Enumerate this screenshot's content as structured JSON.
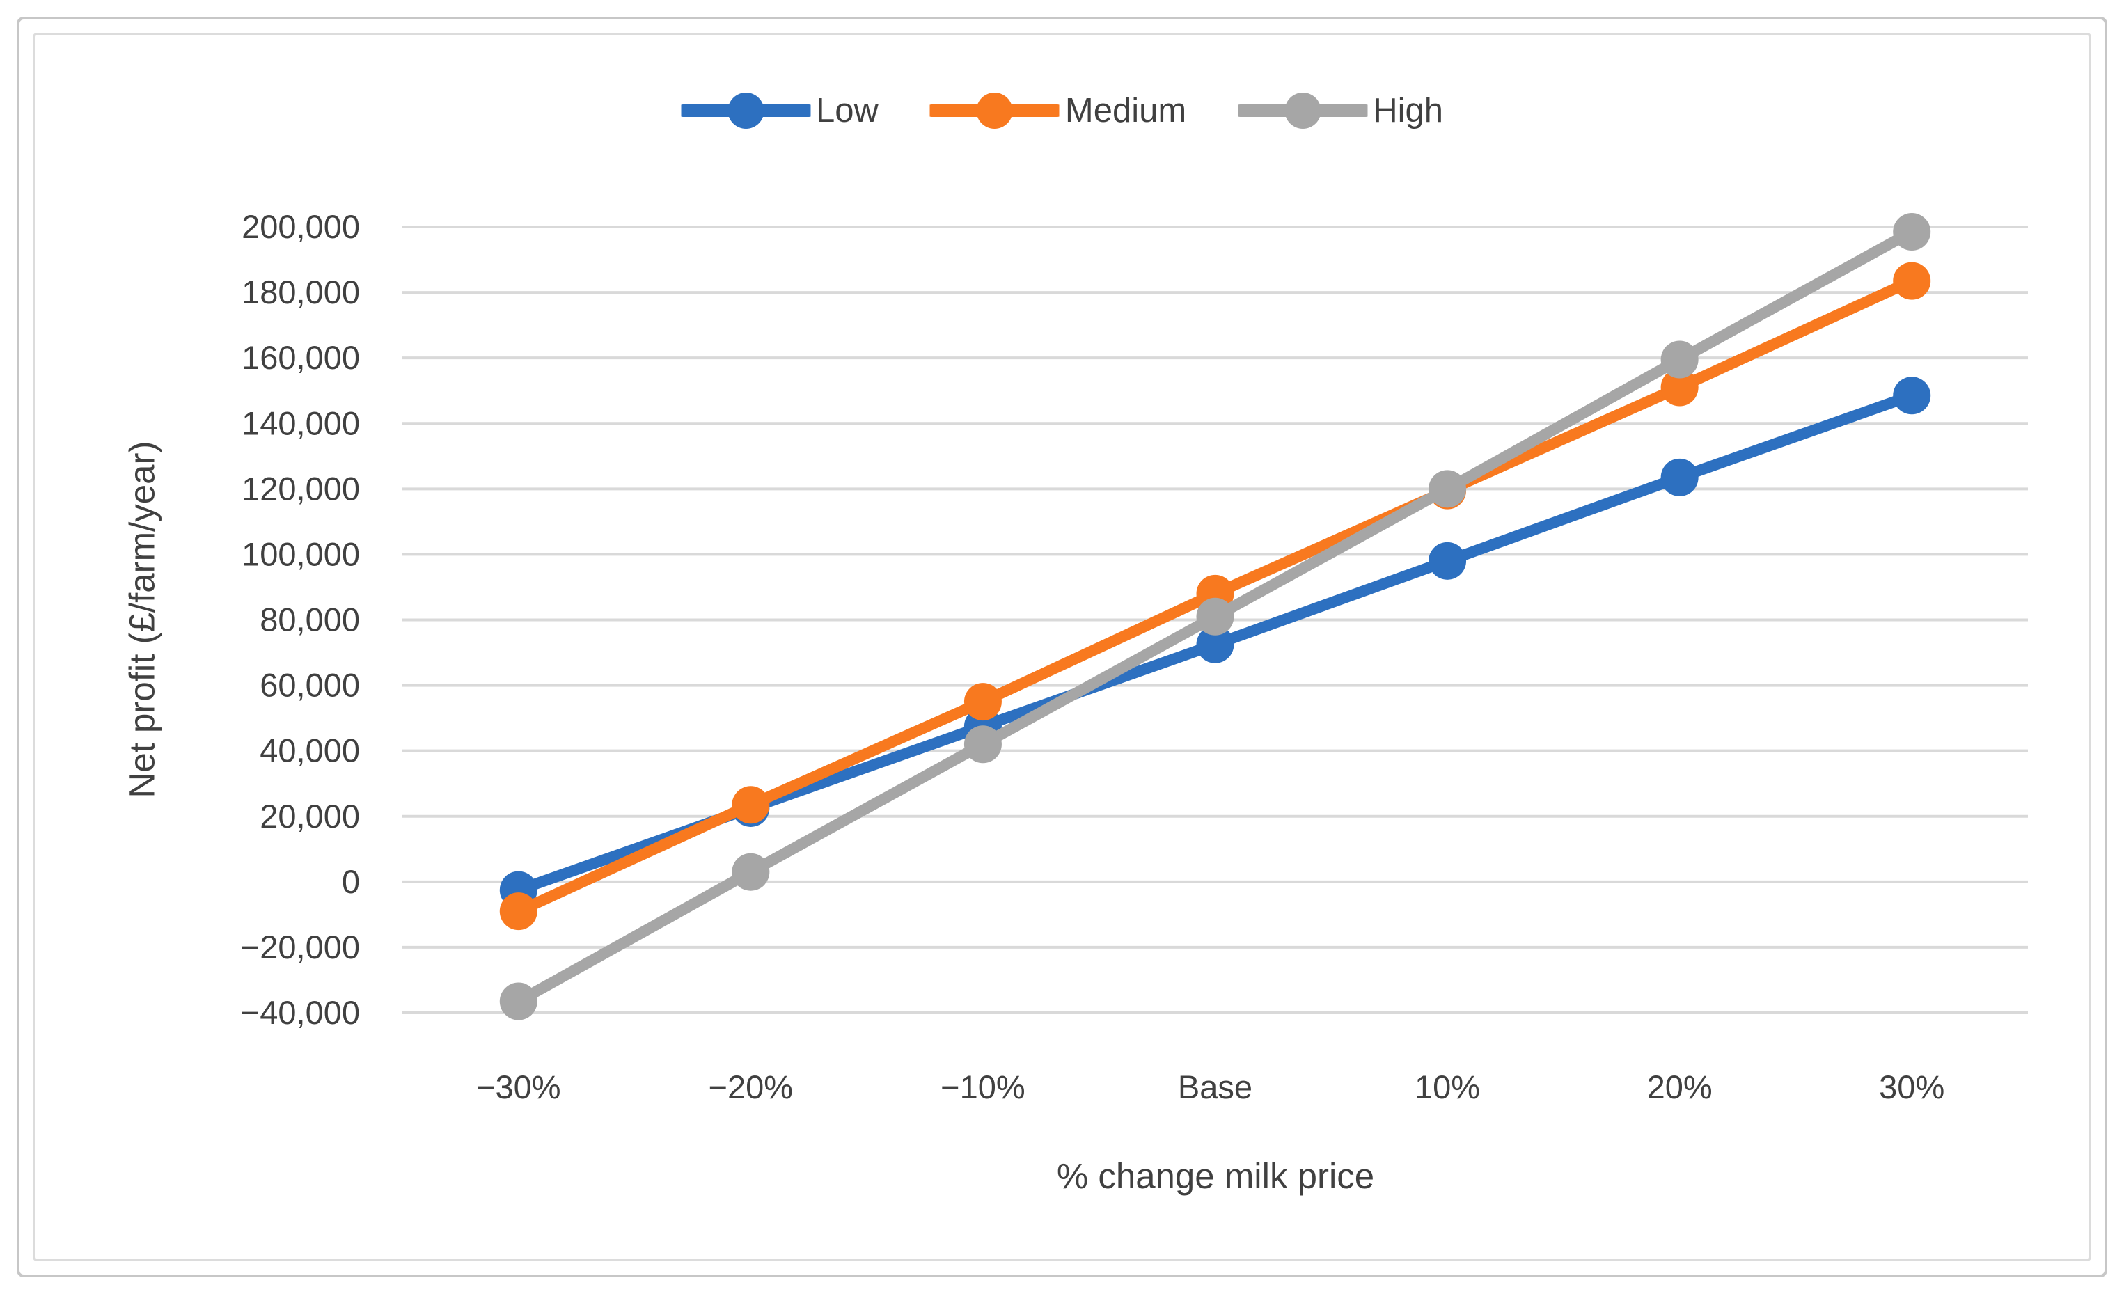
{
  "figure": {
    "description": "Line chart of dairy farm net profit sensitivity to milk price changes for three yield scenarios"
  },
  "legend": {
    "items": [
      {
        "label": "Low",
        "color": "#2d70c0"
      },
      {
        "label": "Medium",
        "color": "#f8791f"
      },
      {
        "label": "High",
        "color": "#a6a6a6"
      }
    ]
  },
  "chart_data": {
    "type": "line",
    "title": "",
    "xlabel": "% change milk price",
    "ylabel": "Net profit (£/farm/year)",
    "categories": [
      "−30%",
      "−20%",
      "−10%",
      "Base",
      "10%",
      "20%",
      "30%"
    ],
    "series": [
      {
        "name": "Low",
        "color": "#2d70c0",
        "values": [
          -2500,
          22500,
          47500,
          72500,
          98000,
          123500,
          148500
        ]
      },
      {
        "name": "Medium",
        "color": "#f8791f",
        "values": [
          -9000,
          23500,
          55000,
          88000,
          119500,
          151000,
          183500
        ]
      },
      {
        "name": "High",
        "color": "#a6a6a6",
        "values": [
          -36500,
          3000,
          42000,
          81000,
          120000,
          159500,
          198500
        ]
      }
    ],
    "ylim": [
      -40000,
      200000
    ],
    "ytick_step": 20000,
    "ytick_labels": [
      "−40,000",
      "−20,000",
      "0",
      "20,000",
      "40,000",
      "60,000",
      "80,000",
      "100,000",
      "120,000",
      "140,000",
      "160,000",
      "180,000",
      "200,000"
    ],
    "grid": true,
    "legend_position": "top-center",
    "marker": "circle"
  }
}
